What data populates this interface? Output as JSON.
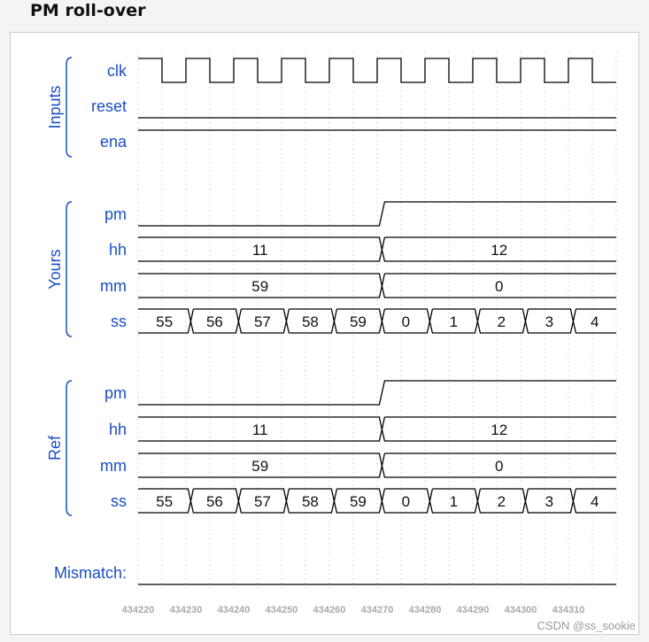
{
  "title": "PM roll-over",
  "credit": "CSDN @ss_sookie",
  "colors": {
    "label": "#1a4fc4",
    "wave": "#000000",
    "grid": "#bbbbbb",
    "axis": "#aaaaaa"
  },
  "time_axis": {
    "start": 434220,
    "end": 434320,
    "ticks": [
      "434220",
      "434230",
      "434240",
      "434250",
      "434260",
      "434270",
      "434280",
      "434290",
      "434300",
      "434310"
    ]
  },
  "groups": [
    {
      "label": "Inputs",
      "signals": [
        {
          "name": "clk",
          "type": "clock",
          "period": 10,
          "initial": 1
        },
        {
          "name": "reset",
          "type": "bit",
          "changes": [
            [
              434220,
              0
            ]
          ]
        },
        {
          "name": "ena",
          "type": "bit",
          "changes": [
            [
              434220,
              1
            ]
          ]
        }
      ]
    },
    {
      "label": "Yours",
      "signals": [
        {
          "name": "pm",
          "type": "bit",
          "changes": [
            [
              434220,
              0
            ],
            [
              434271,
              1
            ]
          ]
        },
        {
          "name": "hh",
          "type": "bus",
          "changes": [
            [
              434220,
              "11"
            ],
            [
              434271,
              "12"
            ]
          ]
        },
        {
          "name": "mm",
          "type": "bus",
          "changes": [
            [
              434220,
              "59"
            ],
            [
              434271,
              "0"
            ]
          ]
        },
        {
          "name": "ss",
          "type": "bus",
          "changes": [
            [
              434220,
              "55"
            ],
            [
              434231,
              "56"
            ],
            [
              434241,
              "57"
            ],
            [
              434251,
              "58"
            ],
            [
              434261,
              "59"
            ],
            [
              434271,
              "0"
            ],
            [
              434281,
              "1"
            ],
            [
              434291,
              "2"
            ],
            [
              434301,
              "3"
            ],
            [
              434311,
              "4"
            ]
          ]
        }
      ]
    },
    {
      "label": "Ref",
      "signals": [
        {
          "name": "pm",
          "type": "bit",
          "changes": [
            [
              434220,
              0
            ],
            [
              434271,
              1
            ]
          ]
        },
        {
          "name": "hh",
          "type": "bus",
          "changes": [
            [
              434220,
              "11"
            ],
            [
              434271,
              "12"
            ]
          ]
        },
        {
          "name": "mm",
          "type": "bus",
          "changes": [
            [
              434220,
              "59"
            ],
            [
              434271,
              "0"
            ]
          ]
        },
        {
          "name": "ss",
          "type": "bus",
          "changes": [
            [
              434220,
              "55"
            ],
            [
              434231,
              "56"
            ],
            [
              434241,
              "57"
            ],
            [
              434251,
              "58"
            ],
            [
              434261,
              "59"
            ],
            [
              434271,
              "0"
            ],
            [
              434281,
              "1"
            ],
            [
              434291,
              "2"
            ],
            [
              434301,
              "3"
            ],
            [
              434311,
              "4"
            ]
          ]
        }
      ]
    }
  ],
  "mismatch": {
    "label": "Mismatch:",
    "changes": [
      [
        434220,
        0
      ]
    ]
  }
}
